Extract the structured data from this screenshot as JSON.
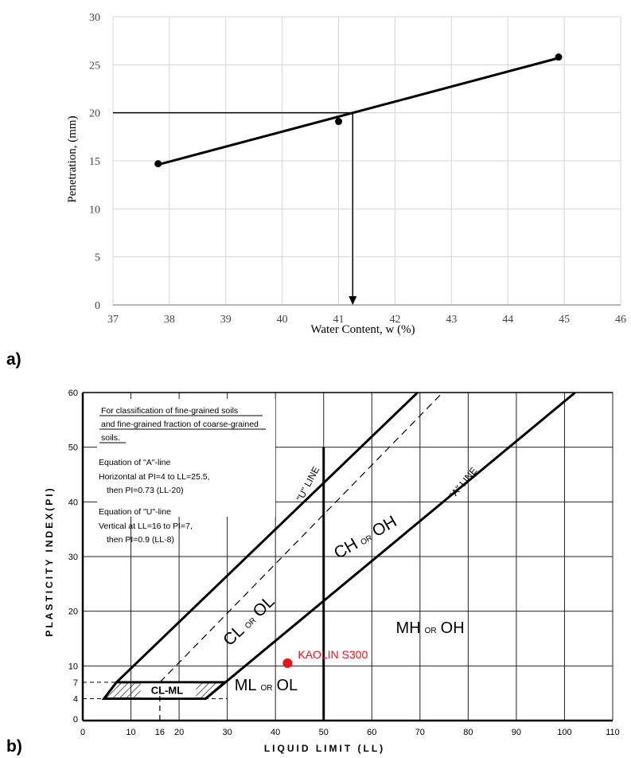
{
  "panel_labels": {
    "a": "a)",
    "b": "b)"
  },
  "chart_data": [
    {
      "type": "line",
      "xlabel": "Water Content,  w (%)",
      "ylabel": "Penetration,  (mm)",
      "xlim": [
        37,
        46
      ],
      "ylim": [
        0,
        30
      ],
      "x_ticks": [
        "37",
        "38",
        "39",
        "40",
        "41",
        "42",
        "43",
        "44",
        "45",
        "46"
      ],
      "y_ticks": [
        "0",
        "5",
        "10",
        "15",
        "20",
        "25",
        "30"
      ],
      "grid": true,
      "series": [
        {
          "x": [
            37.8,
            41.0,
            44.9
          ],
          "y": [
            14.7,
            19.1,
            25.8
          ]
        }
      ],
      "fit_line": {
        "x": [
          37.8,
          44.9
        ],
        "y": [
          14.6,
          25.7
        ]
      },
      "reference": {
        "penetration": 20,
        "water_content": 41.25
      }
    },
    {
      "type": "scatter",
      "xlabel": "LIQUID LIMIT (LL)",
      "ylabel": "PLASTICITY INDEX(PI)",
      "xlim": [
        0,
        110
      ],
      "ylim": [
        0,
        60
      ],
      "x_ticks": [
        "0",
        "10",
        "16",
        "20",
        "30",
        "40",
        "50",
        "60",
        "70",
        "80",
        "90",
        "100",
        "110"
      ],
      "x_tick_values": [
        0,
        10,
        16,
        20,
        30,
        40,
        50,
        60,
        70,
        80,
        90,
        100,
        110
      ],
      "y_ticks": [
        "4",
        "7",
        "10",
        "20",
        "30",
        "40",
        "50",
        "60"
      ],
      "y_tick_values": [
        4,
        7,
        10,
        20,
        30,
        40,
        50,
        60
      ],
      "grid": true,
      "note_lines": [
        "For classification of fine-grained soils",
        "and fine-grained fraction of coarse-grained",
        "soils.",
        "Equation of \"A\"-line",
        "Horizontal at PI=4 to LL=25.5,",
        "then PI=0.73 (LL-20)",
        "Equation of \"U\"-line",
        "Vertical at LL=16 to PI=7,",
        "then PI=0.9 (LL-8)"
      ],
      "line_labels": {
        "u_line": "\"U\" LINE",
        "a_line": "\"A\" LINE"
      },
      "zones": {
        "cl_ol": [
          "CL",
          "OR",
          "OL"
        ],
        "ch_oh": [
          "CH",
          "OR",
          "OH"
        ],
        "mh_oh": [
          "MH",
          "OR",
          "OH"
        ],
        "ml_ol": [
          "ML",
          "OR",
          "OL"
        ],
        "cl_ml": "CL-ML"
      },
      "points": [
        {
          "name": "KAOLIN S300",
          "x": 42.5,
          "y": 10.5,
          "color": "#e8131b"
        }
      ]
    }
  ]
}
